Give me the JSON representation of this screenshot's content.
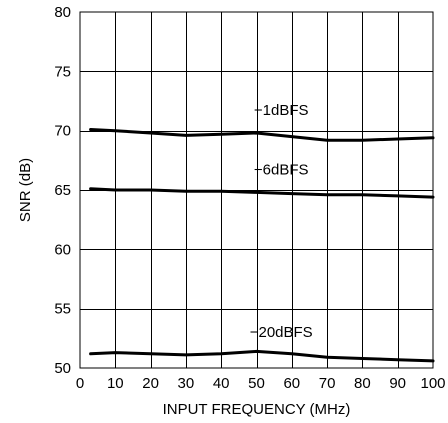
{
  "chart_data": {
    "type": "line",
    "title": "",
    "xlabel": "INPUT FREQUENCY (MHz)",
    "ylabel": "SNR (dB)",
    "xlim": [
      0,
      100
    ],
    "ylim": [
      50,
      80
    ],
    "xticks": [
      0,
      10,
      20,
      30,
      40,
      50,
      60,
      70,
      80,
      90,
      100
    ],
    "yticks": [
      50,
      55,
      60,
      65,
      70,
      75,
      80
    ],
    "grid": true,
    "series": [
      {
        "name": "−1dBFS",
        "x": [
          3,
          10,
          20,
          30,
          40,
          50,
          60,
          70,
          80,
          90,
          100
        ],
        "y": [
          70.1,
          70.0,
          69.8,
          69.6,
          69.7,
          69.8,
          69.5,
          69.2,
          69.2,
          69.3,
          69.4
        ]
      },
      {
        "name": "−6dBFS",
        "x": [
          3,
          10,
          20,
          30,
          40,
          50,
          60,
          70,
          80,
          90,
          100
        ],
        "y": [
          65.1,
          65.0,
          65.0,
          64.9,
          64.9,
          64.8,
          64.7,
          64.6,
          64.6,
          64.5,
          64.4
        ]
      },
      {
        "name": "−20dBFS",
        "x": [
          3,
          10,
          20,
          30,
          40,
          50,
          60,
          70,
          80,
          90,
          100
        ],
        "y": [
          51.2,
          51.3,
          51.2,
          51.1,
          51.2,
          51.4,
          51.2,
          50.9,
          50.8,
          50.7,
          50.6
        ]
      }
    ],
    "series_labels": [
      {
        "text": "−1dBFS",
        "x": 57,
        "y": 71.3
      },
      {
        "text": "−6dBFS",
        "x": 57,
        "y": 66.3
      },
      {
        "text": "−20dBFS",
        "x": 57,
        "y": 52.6
      }
    ]
  }
}
